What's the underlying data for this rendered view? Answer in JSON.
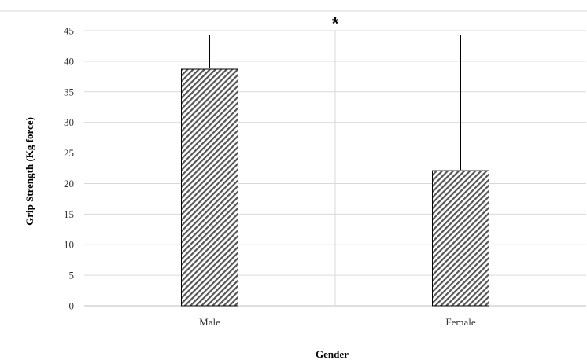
{
  "chart_data": {
    "type": "bar",
    "categories": [
      "Male",
      "Female"
    ],
    "values": [
      38.7,
      22.1
    ],
    "xlabel": "Gender",
    "ylabel": "Grip Strength (Kg force)",
    "ylim": [
      0,
      45
    ],
    "yticks": [
      "0",
      "5",
      "10",
      "15",
      "20",
      "25",
      "30",
      "35",
      "40",
      "45"
    ],
    "grid": true,
    "bar_fill": "hatched",
    "bar_color": "#555555",
    "significance": {
      "label": "*",
      "between": [
        "Male",
        "Female"
      ],
      "bracket_value": 44.3
    }
  }
}
